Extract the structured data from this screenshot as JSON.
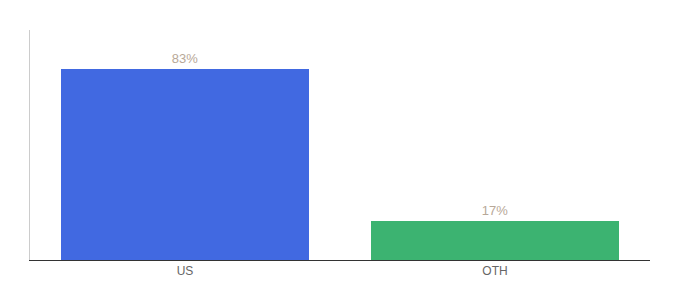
{
  "chart_data": {
    "type": "bar",
    "categories": [
      "US",
      "OTH"
    ],
    "values": [
      83,
      17
    ],
    "value_labels": [
      "83%",
      "17%"
    ],
    "colors": [
      "#4169E1",
      "#3CB371"
    ],
    "ylim": [
      0,
      100
    ],
    "data_labels": true,
    "tick_labels": "x",
    "grid": false
  }
}
